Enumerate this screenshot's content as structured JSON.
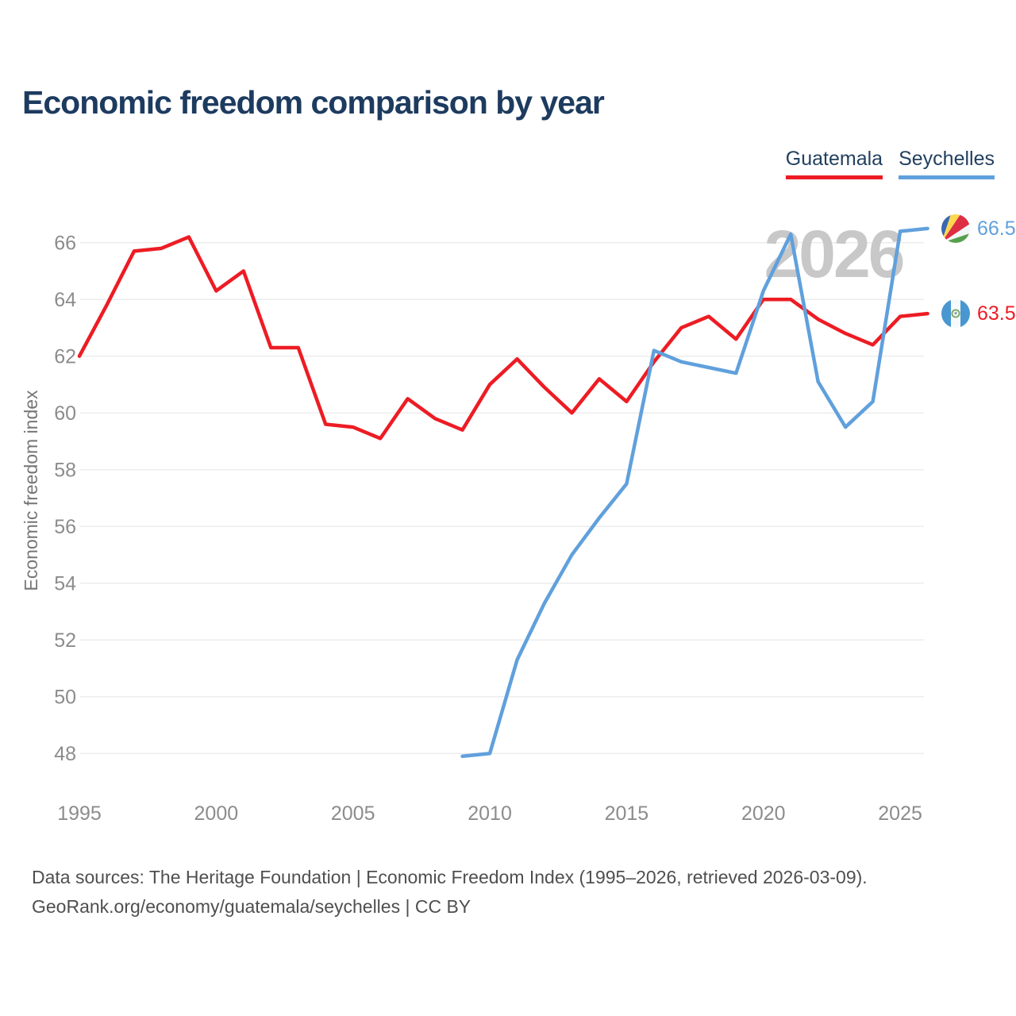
{
  "title": "Economic freedom comparison by year",
  "watermark": "2026",
  "legend": {
    "items": [
      {
        "label": "Guatemala",
        "color": "#ed1c24"
      },
      {
        "label": "Seychelles",
        "color": "#60a0dc"
      }
    ]
  },
  "y_axis": {
    "label": "Economic freedom index"
  },
  "end_labels": [
    {
      "country": "Seychelles",
      "value": "66.5",
      "color": "#60a0dc"
    },
    {
      "country": "Guatemala",
      "value": "63.5",
      "color": "#ed1c24"
    }
  ],
  "footer": {
    "line1": "Data sources: The Heritage Foundation | Economic Freedom Index (1995–2026, retrieved 2026-03-09).",
    "line2": "GeoRank.org/economy/guatemala/seychelles | CC BY"
  },
  "chart_data": {
    "type": "line",
    "title": "Economic freedom comparison by year",
    "xlabel": "",
    "ylabel": "Economic freedom index",
    "ylim": [
      46.5,
      67.5
    ],
    "xlim": [
      1994.5,
      2029
    ],
    "yticks": [
      48,
      50,
      52,
      54,
      56,
      58,
      60,
      62,
      64,
      66
    ],
    "xticks": [
      1995,
      2000,
      2005,
      2010,
      2015,
      2020,
      2025
    ],
    "grid": "horizontal",
    "legend_position": "top-right",
    "series": [
      {
        "name": "Guatemala",
        "color": "#ed1c24",
        "x": [
          1995,
          1996,
          1997,
          1998,
          1999,
          2000,
          2001,
          2002,
          2003,
          2004,
          2005,
          2006,
          2007,
          2008,
          2009,
          2010,
          2011,
          2012,
          2013,
          2014,
          2015,
          2016,
          2017,
          2018,
          2019,
          2020,
          2021,
          2022,
          2023,
          2024,
          2025,
          2026
        ],
        "values": [
          62.0,
          63.8,
          65.7,
          65.8,
          66.2,
          64.3,
          65.0,
          62.3,
          62.3,
          59.6,
          59.5,
          59.1,
          60.5,
          59.8,
          59.4,
          61.0,
          61.9,
          60.9,
          60.0,
          61.2,
          60.4,
          61.8,
          63.0,
          63.4,
          62.6,
          64.0,
          64.0,
          63.3,
          62.8,
          62.4,
          63.4,
          63.5
        ]
      },
      {
        "name": "Seychelles",
        "color": "#60a0dc",
        "x": [
          2009,
          2010,
          2011,
          2012,
          2013,
          2014,
          2015,
          2016,
          2017,
          2018,
          2019,
          2020,
          2021,
          2022,
          2023,
          2024,
          2025,
          2026
        ],
        "values": [
          47.9,
          48.0,
          51.3,
          53.3,
          55.0,
          56.3,
          57.5,
          62.2,
          61.8,
          61.6,
          61.4,
          64.3,
          66.3,
          61.1,
          59.5,
          60.4,
          66.4,
          66.5
        ]
      }
    ]
  }
}
